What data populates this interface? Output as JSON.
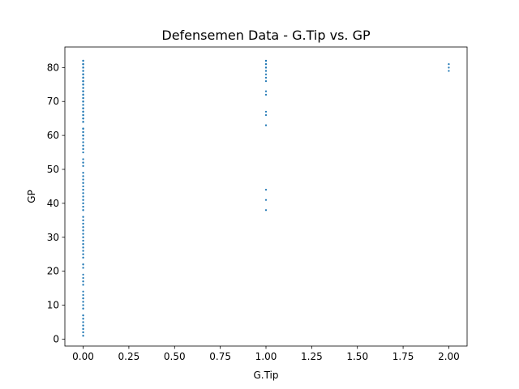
{
  "chart_data": {
    "type": "scatter",
    "title": "Defensemen Data - G.Tip vs. GP",
    "xlabel": "G.Tip",
    "ylabel": "GP",
    "xlim": [
      -0.1,
      2.1
    ],
    "ylim": [
      -2.05,
      86.05
    ],
    "xticks": [
      0,
      0.25,
      0.5,
      0.75,
      1,
      1.25,
      1.5,
      1.75,
      2
    ],
    "xtick_labels": [
      "0.00",
      "0.25",
      "0.50",
      "0.75",
      "1.00",
      "1.25",
      "1.50",
      "1.75",
      "2.00"
    ],
    "yticks": [
      0,
      10,
      20,
      30,
      40,
      50,
      60,
      70,
      80
    ],
    "ytick_labels": [
      "0",
      "10",
      "20",
      "30",
      "40",
      "50",
      "60",
      "70",
      "80"
    ],
    "grid": false,
    "color": "#1f77b4",
    "series": [
      {
        "x": [
          0,
          0,
          0,
          0,
          0,
          0,
          0,
          0,
          0,
          0,
          0,
          0,
          0,
          0,
          0,
          0,
          0,
          0,
          0,
          0,
          0,
          0,
          0,
          0,
          0,
          0,
          0,
          0,
          0,
          0,
          0,
          0,
          0,
          0,
          0,
          0,
          0,
          0,
          0,
          0,
          0,
          0,
          0,
          0,
          0,
          0,
          0,
          0,
          0,
          0,
          0,
          0,
          0,
          0,
          0,
          0,
          0,
          0,
          0,
          0,
          0,
          0,
          0,
          0,
          0,
          0,
          0,
          0,
          0,
          0,
          0,
          0,
          0,
          0,
          0,
          0,
          0,
          0,
          0,
          0,
          0,
          0,
          0,
          0,
          0,
          0,
          0,
          0,
          0,
          0,
          0,
          0,
          0,
          0,
          0,
          0,
          0,
          0,
          0,
          0,
          0,
          0,
          0,
          0,
          0,
          0,
          0,
          0,
          0,
          0,
          0,
          0,
          0,
          0,
          0,
          0,
          0,
          0,
          0,
          0,
          0,
          0,
          0,
          0,
          0,
          0,
          0,
          0,
          0,
          0,
          0,
          0,
          0,
          0,
          0,
          0,
          0,
          0,
          0,
          0,
          0,
          0,
          0,
          0,
          0,
          0,
          0,
          0,
          0,
          0,
          0,
          0,
          0,
          0,
          0,
          0,
          0,
          0,
          0,
          0,
          0,
          0,
          0,
          0,
          0,
          0,
          0,
          0,
          0,
          0,
          0,
          0,
          0,
          0,
          0,
          0,
          0,
          0,
          0,
          0,
          0,
          0,
          0,
          0,
          0,
          0,
          0,
          0,
          0,
          0,
          0,
          0,
          0,
          0,
          0,
          0,
          0,
          0,
          0,
          0,
          0,
          0,
          0,
          0,
          0,
          0,
          0,
          0,
          0,
          0,
          1,
          1,
          1,
          1,
          1,
          1,
          1,
          1,
          1,
          1,
          1,
          1,
          1,
          1,
          1,
          1,
          1,
          1,
          1,
          1,
          1,
          1,
          2,
          2,
          2
        ],
        "y": [
          1,
          1,
          2,
          2,
          3,
          3,
          4,
          4,
          5,
          5,
          6,
          6,
          7,
          7,
          9,
          9,
          10,
          10,
          11,
          11,
          12,
          12,
          13,
          14,
          16,
          16,
          17,
          17,
          18,
          19,
          21,
          21,
          22,
          22,
          24,
          24,
          25,
          25,
          26,
          26,
          27,
          27,
          28,
          28,
          29,
          29,
          30,
          30,
          31,
          31,
          32,
          32,
          33,
          33,
          34,
          34,
          35,
          35,
          36,
          36,
          38,
          38,
          39,
          39,
          40,
          40,
          41,
          41,
          42,
          42,
          43,
          43,
          44,
          44,
          45,
          45,
          46,
          46,
          47,
          47,
          48,
          48,
          49,
          49,
          51,
          51,
          52,
          52,
          53,
          53,
          55,
          55,
          56,
          56,
          57,
          57,
          58,
          58,
          59,
          59,
          60,
          60,
          61,
          61,
          62,
          62,
          64,
          64,
          65,
          65,
          66,
          66,
          67,
          67,
          68,
          68,
          69,
          69,
          70,
          70,
          71,
          71,
          72,
          72,
          73,
          73,
          74,
          74,
          75,
          75,
          76,
          76,
          77,
          77,
          78,
          78,
          79,
          79,
          80,
          80,
          81,
          81,
          82,
          82,
          82,
          82,
          82,
          81,
          81,
          81,
          80,
          80,
          80,
          79,
          79,
          79,
          78,
          78,
          78,
          77,
          77,
          77,
          76,
          76,
          76,
          75,
          75,
          75,
          74,
          74,
          74,
          73,
          73,
          73,
          72,
          72,
          72,
          71,
          71,
          71,
          70,
          70,
          70,
          69,
          69,
          69,
          68,
          68,
          68,
          67,
          67,
          67,
          66,
          66,
          66,
          65,
          65,
          65,
          64,
          64,
          64,
          62,
          62,
          62,
          61,
          61,
          61,
          60,
          60,
          60,
          38,
          41,
          44,
          63,
          63,
          66,
          67,
          72,
          73,
          76,
          77,
          78,
          79,
          79,
          80,
          80,
          81,
          81,
          82,
          82,
          82,
          82,
          79,
          80,
          81
        ]
      }
    ]
  }
}
